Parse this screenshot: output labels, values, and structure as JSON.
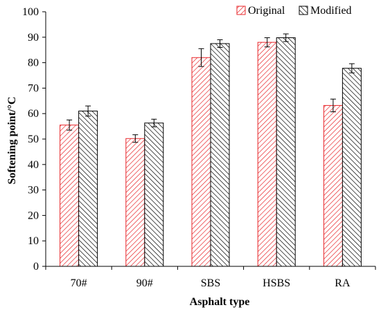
{
  "chart_data": {
    "type": "bar",
    "categories": [
      "70#",
      "90#",
      "SBS",
      "HSBS",
      "RA"
    ],
    "series": [
      {
        "name": "Original",
        "color": "#e8262a",
        "pattern": "diagonal-hatch-up",
        "values": [
          55.5,
          50.2,
          82.0,
          88.0,
          63.2
        ],
        "errors": [
          2.0,
          1.5,
          3.5,
          1.8,
          2.5
        ]
      },
      {
        "name": "Modified",
        "color": "#000000",
        "pattern": "diagonal-hatch-down",
        "values": [
          61.0,
          56.3,
          87.5,
          89.8,
          77.8
        ],
        "errors": [
          2.0,
          1.5,
          1.5,
          1.5,
          1.8
        ]
      }
    ],
    "xlabel": "Asphalt type",
    "ylabel": "Softening point/°C",
    "ylim": [
      0,
      100
    ],
    "yticks": [
      "0",
      "10",
      "20",
      "30",
      "40",
      "50",
      "60",
      "70",
      "80",
      "90",
      "100"
    ],
    "grid": false,
    "legend_position": "top-right"
  }
}
